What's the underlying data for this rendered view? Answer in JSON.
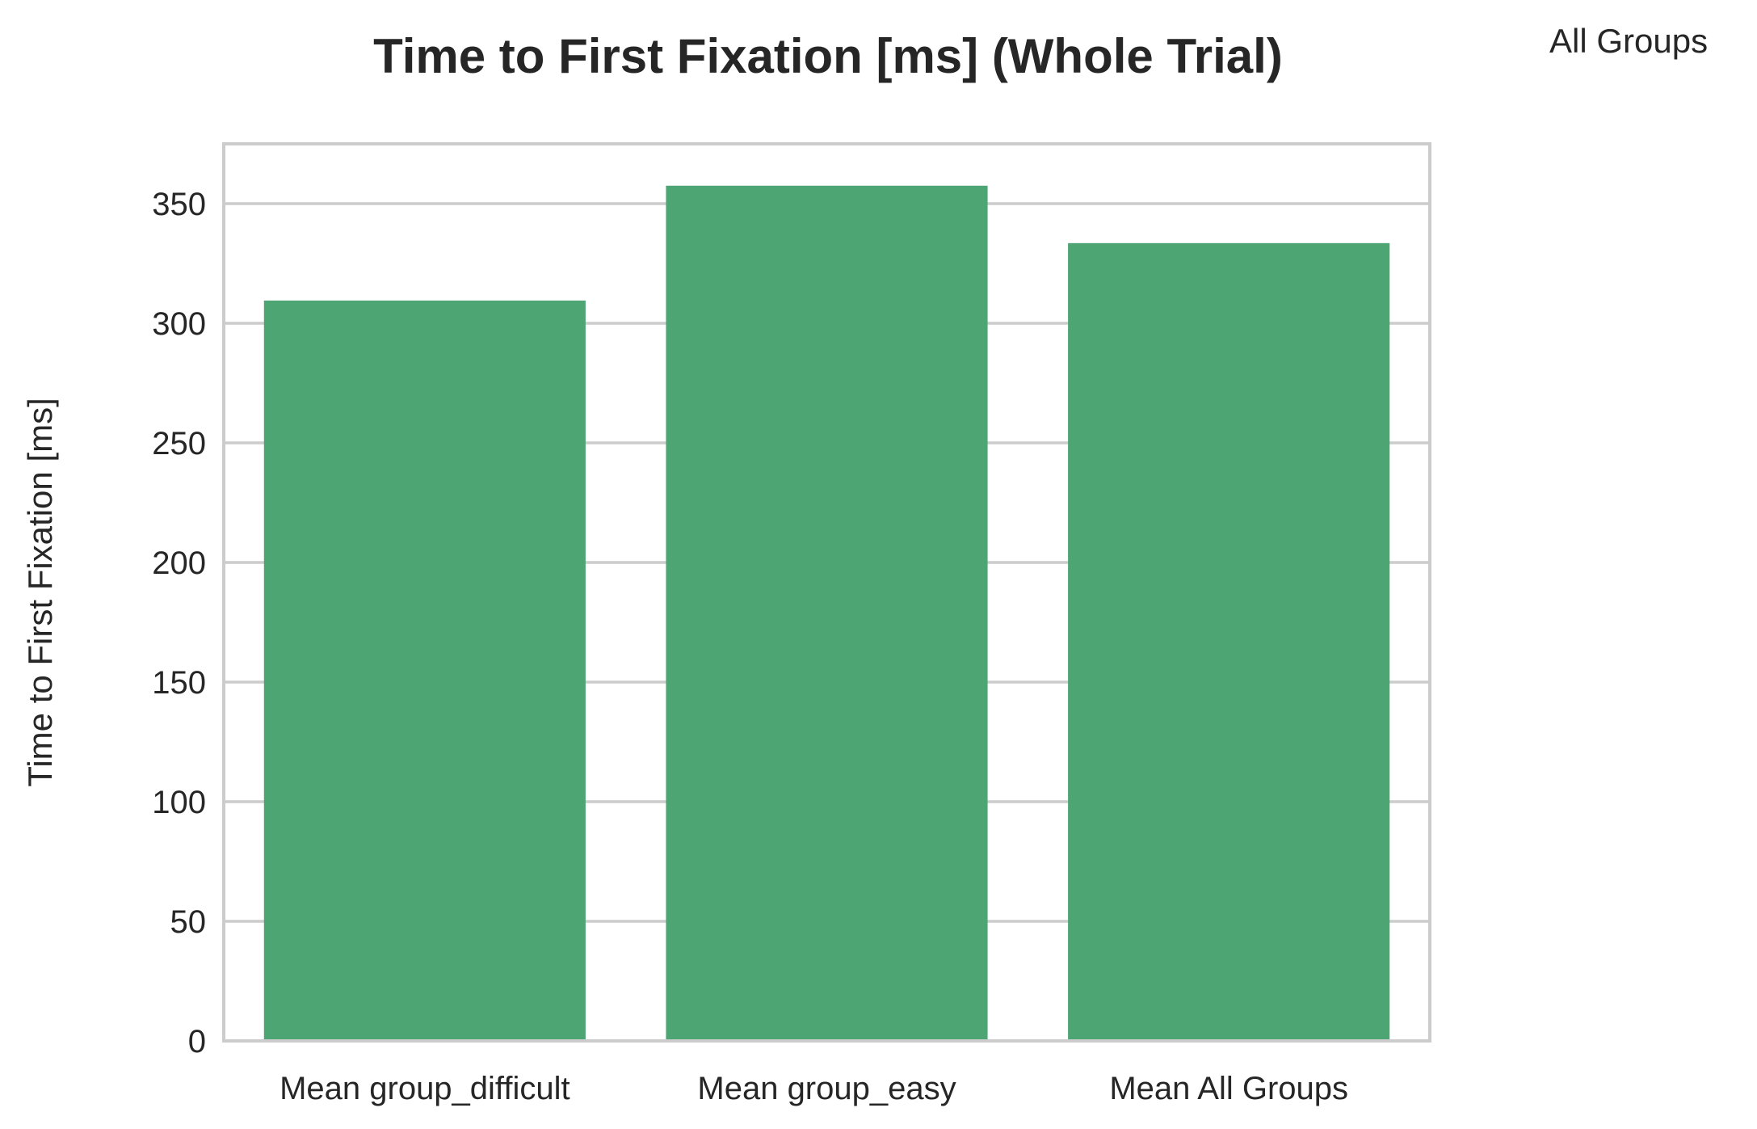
{
  "chart_data": {
    "type": "bar",
    "title": "Time to First Fixation [ms] (Whole Trial)",
    "xlabel": "",
    "ylabel": "Time to First Fixation [ms]",
    "categories": [
      "Mean group_difficult",
      "Mean group_easy",
      "Mean All Groups"
    ],
    "series": [
      {
        "name": "All Groups",
        "values": [
          309.5,
          357.5,
          333.5
        ],
        "color": "#4da574"
      }
    ],
    "ylim": [
      0,
      375
    ],
    "yticks": [
      0,
      50,
      100,
      150,
      200,
      250,
      300,
      350
    ],
    "ytick_labels": [
      "0",
      "50",
      "100",
      "150",
      "200",
      "250",
      "300",
      "350"
    ],
    "grid": true,
    "grid_axis": "y",
    "legend_placement": "top-right-outside"
  }
}
